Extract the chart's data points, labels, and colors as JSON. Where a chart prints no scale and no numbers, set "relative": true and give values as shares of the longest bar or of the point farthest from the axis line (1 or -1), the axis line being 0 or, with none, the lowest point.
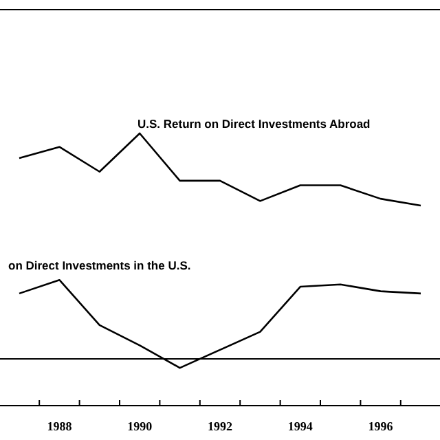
{
  "chart_data": {
    "type": "line",
    "relative": true,
    "categories": [
      null,
      "1988",
      null,
      "1990",
      null,
      "1992",
      null,
      "1994",
      null,
      "1996",
      null
    ],
    "series": [
      {
        "name": "U.S. Return on Direct Investments Abroad",
        "color": "#000000",
        "values": [
          0.89,
          0.94,
          0.83,
          1,
          0.79,
          0.79,
          0.7,
          0.77,
          0.77,
          0.71,
          0.68
        ]
      },
      {
        "name": "on Direct Investments in the U.S.",
        "color": "#000000",
        "values": [
          0.29,
          0.35,
          0.15,
          0.06,
          -0.04,
          0.04,
          0.12,
          0.32,
          0.33,
          0.3,
          0.29
        ]
      }
    ],
    "marker": "none",
    "line_style": "solid"
  }
}
